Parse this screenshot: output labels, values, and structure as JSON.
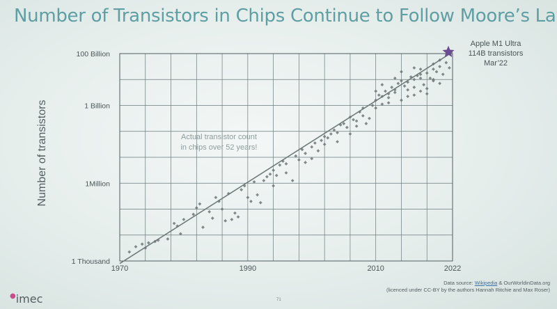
{
  "title": "Number of Transistors in Chips Continue to Follow Moore’s Law",
  "footer": {
    "logo": "imec",
    "source_prefix": "Data source: ",
    "source_link1": "Wikipedia",
    "source_amp": " & OurWorldinData.org",
    "source_line2": "(licenced under CC-BY by the authors Hannah Ritchie and Max Roser)",
    "page_number": "71"
  },
  "chart_data": {
    "type": "scatter",
    "title": "Number of Transistors in Chips Continue to Follow Moore’s Law",
    "xlabel": "",
    "ylabel": "Number of transistors",
    "log_y": true,
    "xlim": [
      1970,
      2022
    ],
    "ylim_log10": [
      3,
      11
    ],
    "x_tick_labels": [
      {
        "x": 1970,
        "label": "1970"
      },
      {
        "x": 1990,
        "label": "1990"
      },
      {
        "x": 2010,
        "label": "2010"
      },
      {
        "x": 2022,
        "label": "2022"
      }
    ],
    "y_tick_labels": [
      {
        "log10": 3,
        "label": "1 Thousand"
      },
      {
        "log10": 6,
        "label": "1Million"
      },
      {
        "log10": 9,
        "label": "1 Billion"
      },
      {
        "log10": 11,
        "label": "100 Billion"
      }
    ],
    "grid": true,
    "annotation": {
      "line1": "Actual transistor count",
      "line2": "in chips over 52 years!",
      "x": 1985.5,
      "log10": 7.7
    },
    "highlight": {
      "line1": "Apple M1 Ultra",
      "line2": "114B transistors",
      "line3": "Mar’22",
      "x": 2022,
      "log10": 11.06,
      "color": "#6a4b8f"
    },
    "trend_line": {
      "from": [
        1970,
        2.9
      ],
      "to": [
        2022,
        11.06
      ]
    },
    "marker_color": "#6d7677",
    "points": [
      [
        1971.5,
        3.35
      ],
      [
        1972.5,
        3.55
      ],
      [
        1973.5,
        3.65
      ],
      [
        1974,
        3.5
      ],
      [
        1974.5,
        3.7
      ],
      [
        1975.5,
        3.75
      ],
      [
        1976,
        3.8
      ],
      [
        1977.5,
        3.85
      ],
      [
        1978.5,
        4.45
      ],
      [
        1979,
        4.35
      ],
      [
        1979.5,
        4.05
      ],
      [
        1980,
        4.6
      ],
      [
        1981.5,
        4.8
      ],
      [
        1982,
        5.05
      ],
      [
        1982.5,
        5.2
      ],
      [
        1983,
        4.3
      ],
      [
        1984,
        4.9
      ],
      [
        1984.5,
        4.65
      ],
      [
        1985,
        5.45
      ],
      [
        1985.5,
        5.3
      ],
      [
        1986,
        5.0
      ],
      [
        1986.5,
        4.55
      ],
      [
        1987,
        5.6
      ],
      [
        1987.5,
        4.6
      ],
      [
        1988,
        4.85
      ],
      [
        1988.5,
        4.7
      ],
      [
        1989,
        5.75
      ],
      [
        1989.5,
        5.9
      ],
      [
        1990,
        5.45
      ],
      [
        1990.5,
        5.3
      ],
      [
        1991,
        6.05
      ],
      [
        1991.5,
        5.55
      ],
      [
        1992,
        5.25
      ],
      [
        1992.5,
        6.1
      ],
      [
        1993,
        6.25
      ],
      [
        1993.5,
        6.35
      ],
      [
        1994,
        6.5
      ],
      [
        1994.5,
        6.3
      ],
      [
        1995,
        6.7
      ],
      [
        1995.5,
        6.85
      ],
      [
        1996,
        6.75
      ],
      [
        1997,
        6.1
      ],
      [
        1997.5,
        7.05
      ],
      [
        1998,
        6.9
      ],
      [
        1998.5,
        7.3
      ],
      [
        1999,
        7.15
      ],
      [
        2000,
        7.4
      ],
      [
        2000.5,
        7.55
      ],
      [
        2001,
        7.25
      ],
      [
        2001.5,
        7.65
      ],
      [
        2002,
        7.8
      ],
      [
        2002.5,
        7.75
      ],
      [
        2003,
        7.9
      ],
      [
        2003.5,
        8.05
      ],
      [
        2004,
        7.95
      ],
      [
        2004.5,
        8.25
      ],
      [
        2005,
        8.3
      ],
      [
        2005.5,
        8.15
      ],
      [
        2006,
        8.55
      ],
      [
        2006.5,
        8.45
      ],
      [
        2007,
        8.4
      ],
      [
        2007.5,
        8.75
      ],
      [
        2008,
        8.9
      ],
      [
        2008.5,
        8.3
      ],
      [
        2009,
        8.5
      ],
      [
        2009.5,
        9.0
      ],
      [
        2010,
        9.2
      ],
      [
        2010.5,
        9.4
      ],
      [
        2011,
        9.35
      ],
      [
        2011.5,
        9.55
      ],
      [
        2012,
        9.45
      ],
      [
        2012.5,
        9.7
      ],
      [
        2013,
        9.6
      ],
      [
        2013.5,
        9.85
      ],
      [
        2014,
        9.95
      ],
      [
        2014.5,
        9.75
      ],
      [
        2015,
        9.9
      ],
      [
        2015.5,
        10.1
      ],
      [
        2016,
        10.0
      ],
      [
        2016.5,
        10.15
      ],
      [
        2017,
        10.2
      ],
      [
        2017.5,
        9.8
      ],
      [
        2018,
        10.25
      ],
      [
        2018.5,
        10.05
      ],
      [
        2019,
        10.4
      ],
      [
        2019.5,
        10.3
      ],
      [
        2020,
        10.5
      ],
      [
        2020.5,
        10.2
      ],
      [
        2021,
        10.65
      ],
      [
        2021.5,
        10.45
      ],
      [
        2012,
        9.3
      ],
      [
        2013,
        9.5
      ],
      [
        2014,
        9.2
      ],
      [
        2015,
        9.6
      ],
      [
        2016,
        9.7
      ],
      [
        2017,
        9.55
      ],
      [
        2018,
        9.65
      ],
      [
        2019,
        9.95
      ],
      [
        2020,
        9.85
      ],
      [
        2016,
        9.4
      ],
      [
        2017,
        10.4
      ],
      [
        2019,
        10.0
      ],
      [
        2010,
        8.9
      ],
      [
        2011,
        9.05
      ],
      [
        2012,
        9.1
      ],
      [
        2008,
        8.6
      ],
      [
        2007,
        8.2
      ],
      [
        2006,
        7.9
      ],
      [
        2004,
        7.6
      ],
      [
        2002,
        7.5
      ],
      [
        2000,
        6.95
      ],
      [
        1999,
        6.8
      ],
      [
        1996,
        6.4
      ],
      [
        1994,
        5.9
      ],
      [
        2010,
        9.55
      ],
      [
        2015,
        9.35
      ],
      [
        2018,
        9.45
      ],
      [
        2013,
        10.05
      ],
      [
        2014,
        10.3
      ],
      [
        2016,
        10.45
      ],
      [
        2011,
        9.8
      ],
      [
        2017,
        10.05
      ],
      [
        2019,
        10.6
      ],
      [
        2020,
        10.75
      ]
    ]
  }
}
